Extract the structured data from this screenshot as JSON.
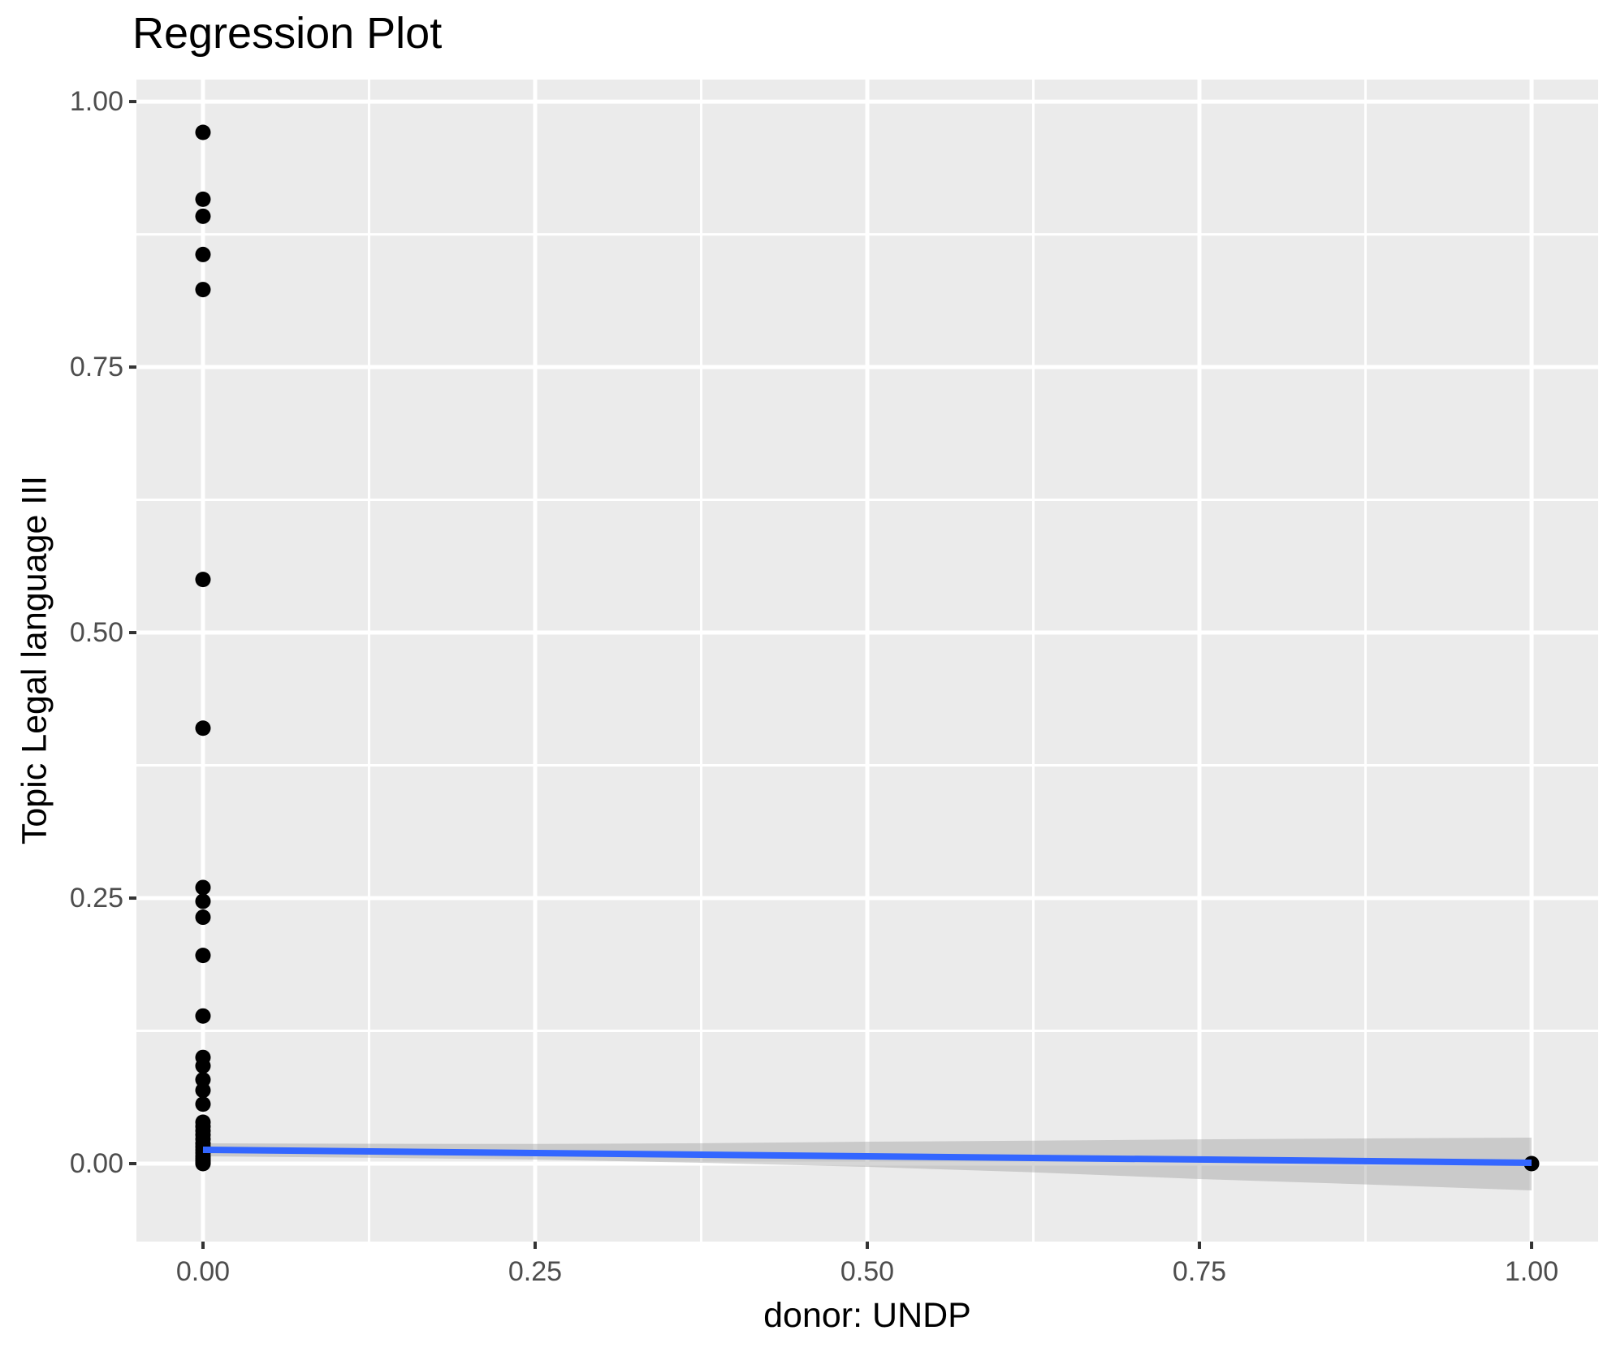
{
  "title": "Regression Plot",
  "chart_data": {
    "type": "scatter",
    "title": "Regression Plot",
    "xlabel": "donor: UNDP",
    "ylabel": "Topic Legal language III",
    "xlim": [
      -0.0501,
      1.0501
    ],
    "ylim": [
      -0.0734,
      1.0207
    ],
    "grid": "white major and minor gridlines on grey panel, legend none",
    "x_ticks": {
      "values": [
        0,
        0.25,
        0.5,
        0.75,
        1.0
      ],
      "labels": [
        "0.00",
        "0.25",
        "0.50",
        "0.75",
        "1.00"
      ]
    },
    "y_ticks": {
      "values": [
        0,
        0.25,
        0.5,
        0.75,
        1.0
      ],
      "labels": [
        "0.00",
        "0.25",
        "0.50",
        "0.75",
        "1.00"
      ]
    },
    "points": [
      {
        "x": 0,
        "y": 0.971
      },
      {
        "x": 0,
        "y": 0.908
      },
      {
        "x": 0,
        "y": 0.892
      },
      {
        "x": 0,
        "y": 0.856
      },
      {
        "x": 0,
        "y": 0.823
      },
      {
        "x": 0,
        "y": 0.55
      },
      {
        "x": 0,
        "y": 0.41
      },
      {
        "x": 0,
        "y": 0.26
      },
      {
        "x": 0,
        "y": 0.247
      },
      {
        "x": 0,
        "y": 0.232
      },
      {
        "x": 0,
        "y": 0.196
      },
      {
        "x": 0,
        "y": 0.139
      },
      {
        "x": 0,
        "y": 0.1
      },
      {
        "x": 0,
        "y": 0.092
      },
      {
        "x": 0,
        "y": 0.079
      },
      {
        "x": 0,
        "y": 0.069
      },
      {
        "x": 0,
        "y": 0.056
      },
      {
        "x": 0,
        "y": 0.039
      },
      {
        "x": 0,
        "y": 0.035
      },
      {
        "x": 0,
        "y": 0.031
      },
      {
        "x": 0,
        "y": 0.027
      },
      {
        "x": 0,
        "y": 0.023
      },
      {
        "x": 0,
        "y": 0.019
      },
      {
        "x": 0,
        "y": 0.016
      },
      {
        "x": 0,
        "y": 0.013
      },
      {
        "x": 0,
        "y": 0.01
      },
      {
        "x": 0,
        "y": 0.007
      },
      {
        "x": 0,
        "y": 0.005
      },
      {
        "x": 0,
        "y": 0.003
      },
      {
        "x": 0,
        "y": 0.001
      },
      {
        "x": 0,
        "y": 0.0
      },
      {
        "x": 1,
        "y": 0.0
      }
    ],
    "regression_line": {
      "x": [
        0,
        1
      ],
      "y": [
        0.013,
        0.0008
      ]
    },
    "confidence_band": {
      "x": [
        0,
        0.125,
        0.25,
        0.375,
        0.5,
        0.625,
        0.75,
        0.875,
        1.0
      ],
      "upper": [
        0.0191,
        0.0187,
        0.0185,
        0.0192,
        0.0206,
        0.0216,
        0.0228,
        0.0237,
        0.0245
      ],
      "lower": [
        0.0069,
        0.0055,
        0.0038,
        0.0008,
        -0.0031,
        -0.0082,
        -0.0145,
        -0.0196,
        -0.0252
      ]
    },
    "colors": {
      "point": "#000000",
      "line": "#3366FF",
      "band": "#999999",
      "band_opacity": 0.4,
      "panel_bg": "#EBEBEB",
      "grid": "#FFFFFF",
      "tick_mark": "#333333",
      "tick_label": "#4D4D4D",
      "axis_title": "#000000",
      "title": "#000000"
    }
  }
}
